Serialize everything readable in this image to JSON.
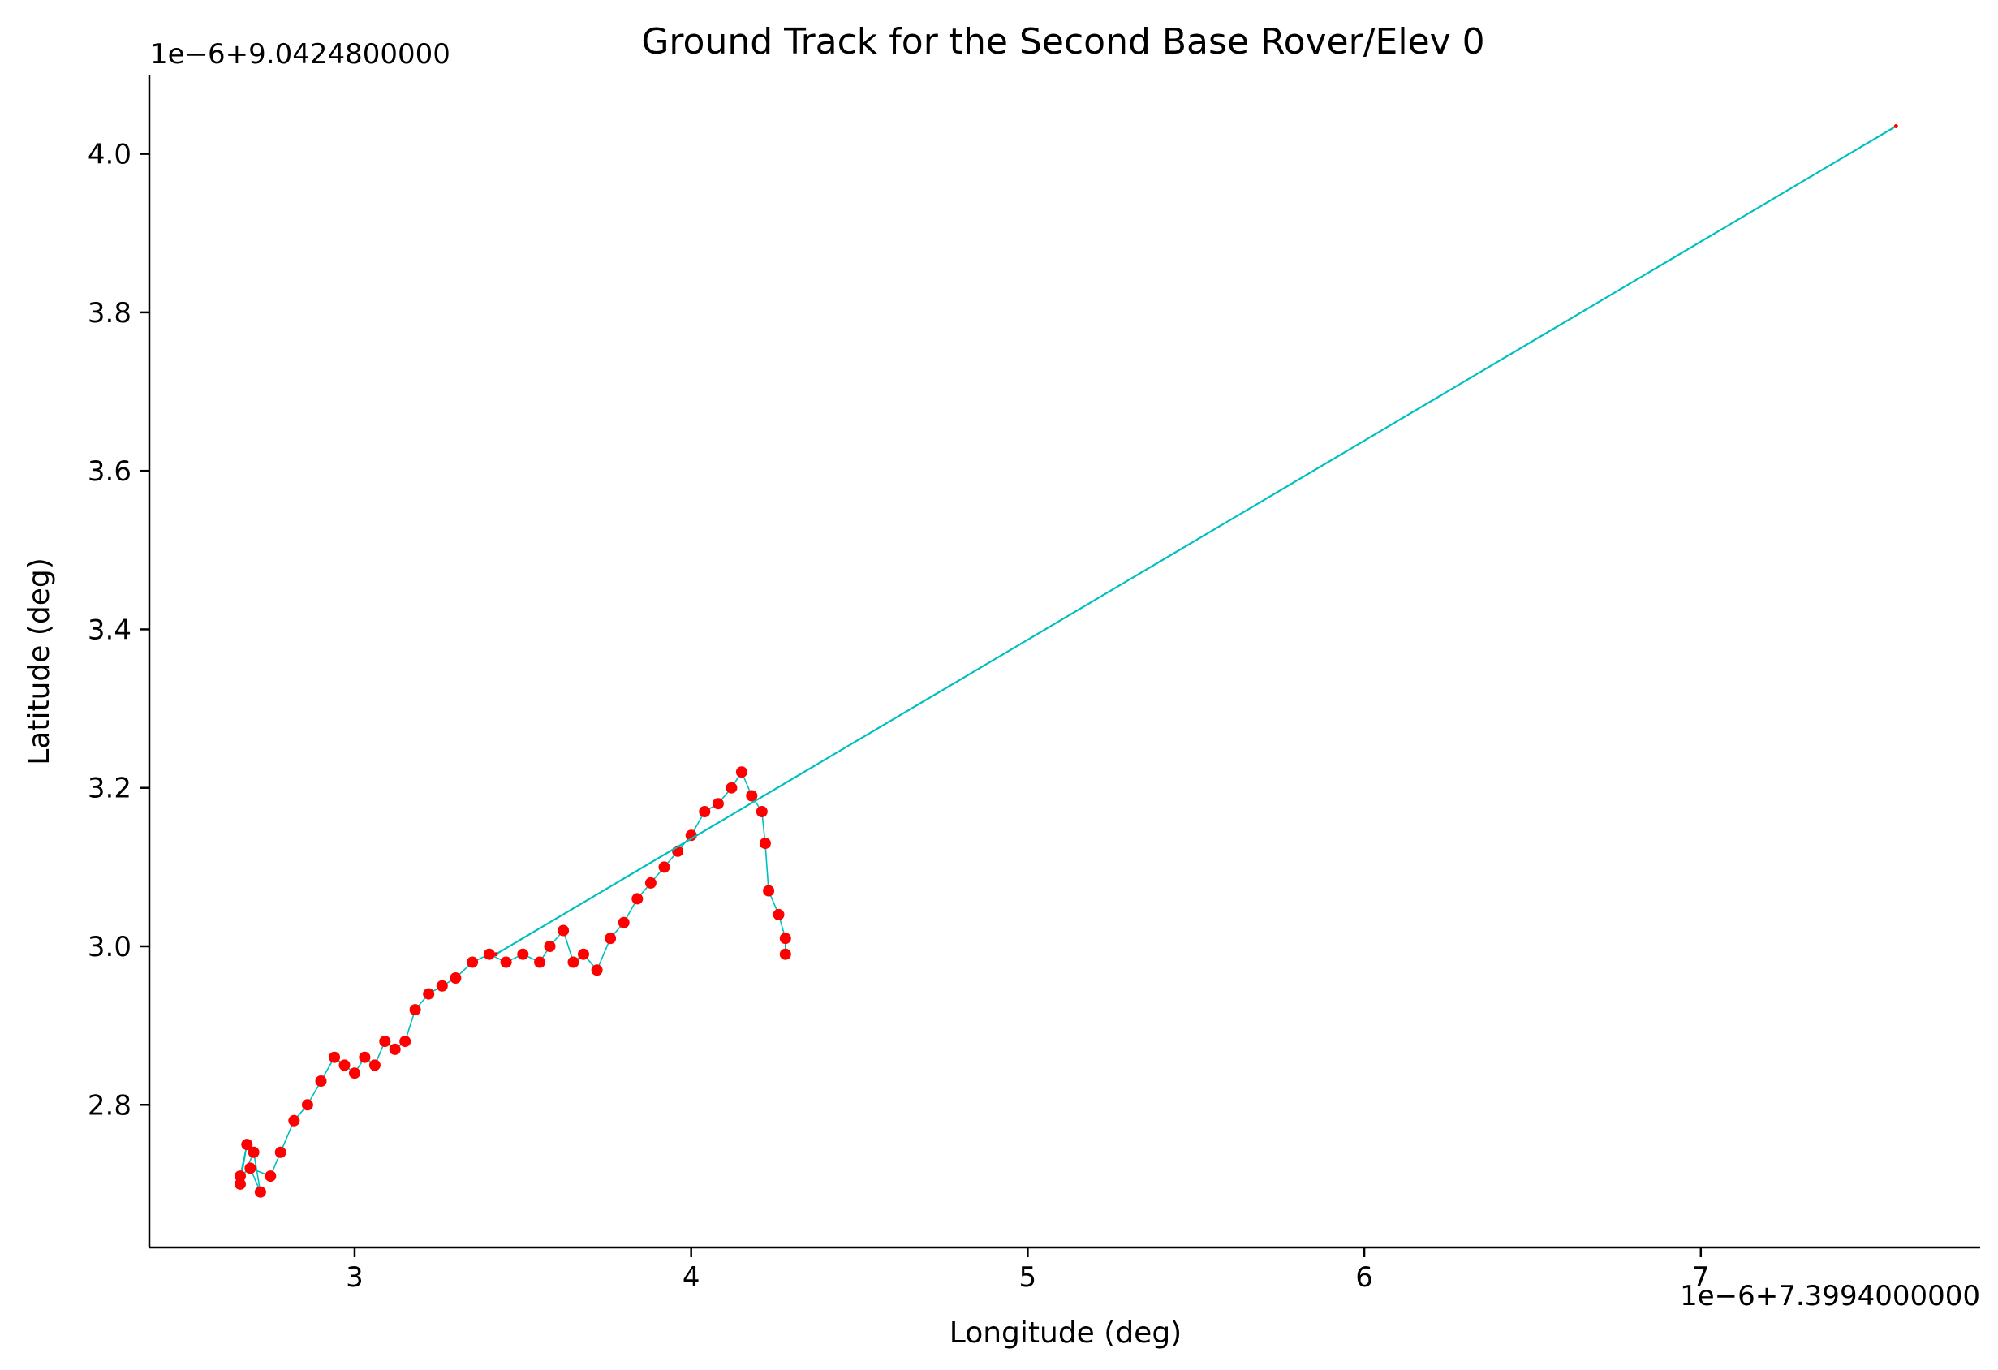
{
  "chart_data": {
    "type": "line",
    "title": "Ground Track for the Second Base Rover/Elev 0",
    "xlabel": "Longitude (deg)",
    "ylabel": "Latitude (deg)",
    "x_offset_label": "1e−6+7.3994000000",
    "y_offset_label": "1e−6+9.0424800000",
    "xlim": [
      2.39,
      7.83
    ],
    "ylim": [
      2.62,
      4.1
    ],
    "xticks": [
      3,
      4,
      5,
      6,
      7
    ],
    "yticks": [
      2.8,
      3.0,
      3.2,
      3.4,
      3.6,
      3.8,
      4.0
    ],
    "grid": false,
    "line_color": "#00bfbf",
    "marker_color": "#ff0000",
    "series": [
      {
        "x": [
          2.66,
          2.68,
          2.66,
          2.7,
          2.72,
          2.69,
          2.75,
          2.78,
          2.82,
          2.86,
          2.9,
          2.94,
          2.97,
          3.0,
          3.03,
          3.06,
          3.09,
          3.12,
          3.15,
          3.18,
          3.22,
          3.26,
          3.3,
          3.35,
          3.4,
          3.45,
          3.5,
          3.55,
          3.58,
          3.62,
          3.65,
          3.68,
          3.72,
          3.76,
          3.8,
          3.84,
          3.88,
          3.92,
          3.96,
          4.0,
          4.04,
          4.08,
          4.12,
          4.15,
          4.18,
          4.21,
          4.22,
          4.23,
          4.26,
          4.28,
          4.28
        ],
        "y": [
          2.71,
          2.75,
          2.7,
          2.74,
          2.69,
          2.72,
          2.71,
          2.74,
          2.78,
          2.8,
          2.83,
          2.86,
          2.85,
          2.84,
          2.86,
          2.85,
          2.88,
          2.87,
          2.88,
          2.92,
          2.94,
          2.95,
          2.96,
          2.98,
          2.99,
          2.98,
          2.99,
          2.98,
          3.0,
          3.02,
          2.98,
          2.99,
          2.97,
          3.01,
          3.03,
          3.06,
          3.08,
          3.1,
          3.12,
          3.14,
          3.17,
          3.18,
          3.2,
          3.22,
          3.19,
          3.17,
          3.13,
          3.07,
          3.04,
          3.01,
          2.99
        ]
      },
      {
        "x": [
          3.42,
          7.58
        ],
        "y": [
          2.99,
          4.035
        ]
      }
    ]
  }
}
